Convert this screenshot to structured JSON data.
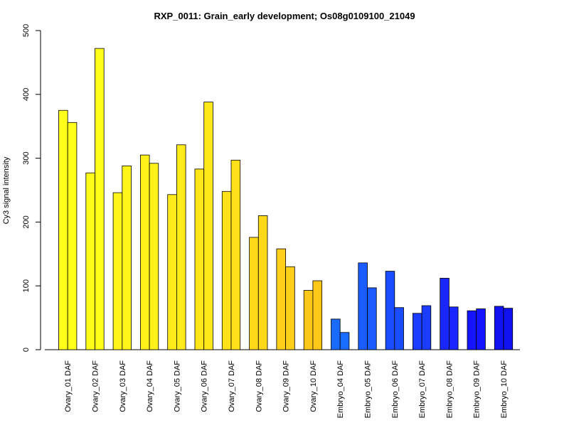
{
  "chart_data": {
    "type": "bar",
    "title": "RXP_0011: Grain_early development; Os08g0109100_21049",
    "ylabel": "Cy3 signal intensity",
    "xlabel": "",
    "ylim": [
      0,
      500
    ],
    "yticks": [
      0,
      100,
      200,
      300,
      400,
      500
    ],
    "grid": false,
    "legend": "none",
    "bars_per_category": 2,
    "categories": [
      "Ovary_01 DAF",
      "Ovary_02 DAF",
      "Ovary_03 DAF",
      "Ovary_04 DAF",
      "Ovary_05 DAF",
      "Ovary_06 DAF",
      "Ovary_07 DAF",
      "Ovary_08 DAF",
      "Ovary_09 DAF",
      "Ovary_10 DAF",
      "Embryo_04 DAF",
      "Embryo_05 DAF",
      "Embryo_06 DAF",
      "Embryo_07 DAF",
      "Embryo_08 DAF",
      "Embryo_09 DAF",
      "Embryo_10 DAF"
    ],
    "values": [
      [
        375,
        356
      ],
      [
        277,
        472
      ],
      [
        246,
        288
      ],
      [
        305,
        292
      ],
      [
        243,
        321
      ],
      [
        283,
        388
      ],
      [
        248,
        297
      ],
      [
        176,
        210
      ],
      [
        158,
        130
      ],
      [
        93,
        108
      ],
      [
        48,
        27
      ],
      [
        136,
        97
      ],
      [
        123,
        66
      ],
      [
        57,
        69
      ],
      [
        112,
        67
      ],
      [
        61,
        64
      ],
      [
        68,
        65
      ]
    ],
    "colors": [
      "#FFFF19",
      "#FFFF19",
      "#FFF519",
      "#FFF019",
      "#FFEB19",
      "#FFE719",
      "#FFE119",
      "#FFD919",
      "#FFD019",
      "#FFC819",
      "#1A6BFF",
      "#1A5CFF",
      "#1A4DFF",
      "#1A3DFF",
      "#1A26FF",
      "#1414FF",
      "#1212F0"
    ]
  }
}
